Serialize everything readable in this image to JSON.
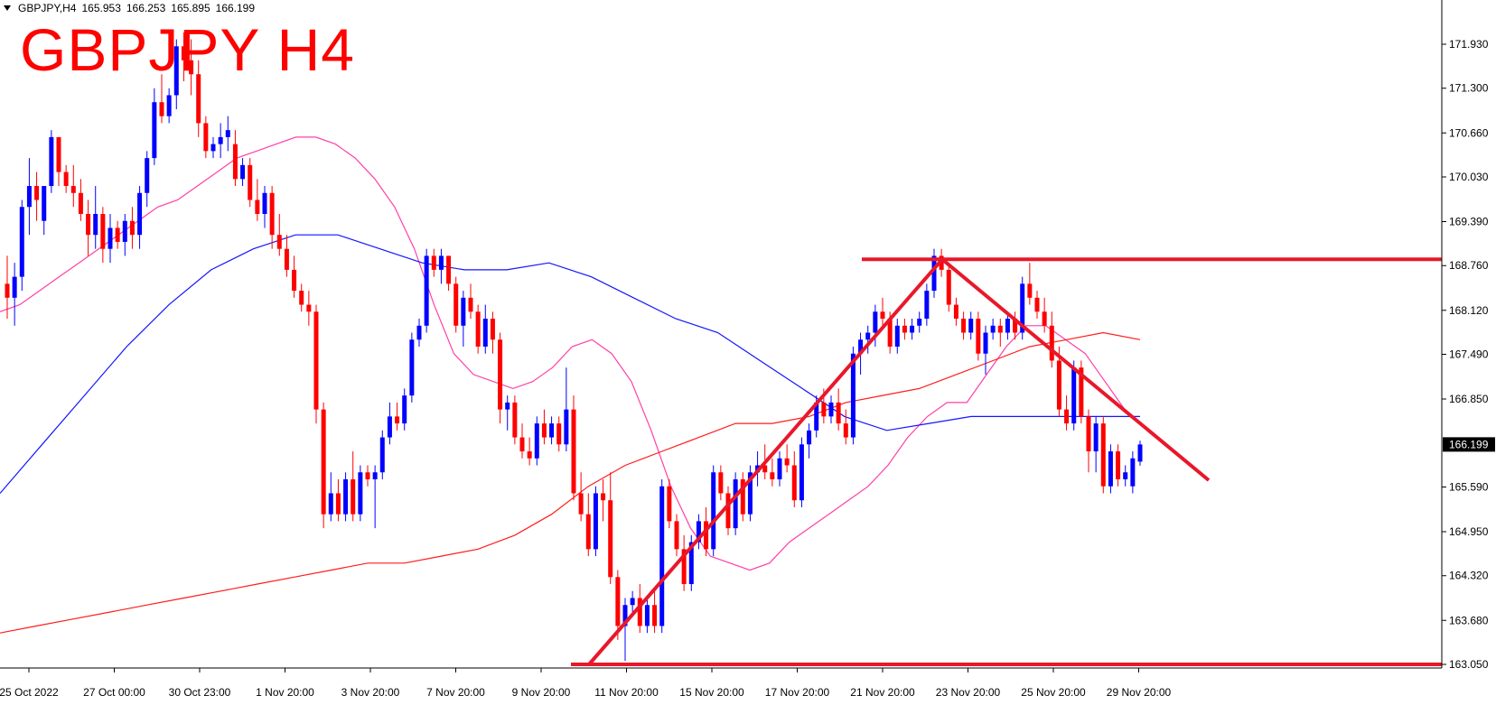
{
  "header": {
    "symbol": "GBPJPY,H4",
    "open": "165.953",
    "high": "166.253",
    "low": "165.895",
    "close": "166.199"
  },
  "title": "GBPJPY H4",
  "chart_data": {
    "type": "candlestick",
    "price_axis": {
      "ticks": [
        "171.930",
        "171.300",
        "170.660",
        "170.030",
        "169.390",
        "168.760",
        "168.120",
        "167.490",
        "166.850",
        "166.199",
        "165.590",
        "164.950",
        "164.320",
        "163.680",
        "163.050"
      ],
      "current_price": "166.199",
      "range": [
        162.9,
        172.3
      ]
    },
    "time_axis": {
      "labels": [
        "25 Oct 2022",
        "27 Oct 00:00",
        "30 Oct 23:00",
        "1 Nov 20:00",
        "3 Nov 20:00",
        "7 Nov 20:00",
        "9 Nov 20:00",
        "11 Nov 20:00",
        "15 Nov 20:00",
        "17 Nov 20:00",
        "21 Nov 20:00",
        "23 Nov 20:00",
        "25 Nov 20:00",
        "29 Nov 20:00"
      ]
    },
    "candles": [
      {
        "o": 168.5,
        "h": 168.9,
        "l": 168.0,
        "c": 168.3
      },
      {
        "o": 168.3,
        "h": 168.8,
        "l": 167.9,
        "c": 168.6
      },
      {
        "o": 168.6,
        "h": 169.7,
        "l": 168.4,
        "c": 169.6
      },
      {
        "o": 169.6,
        "h": 170.3,
        "l": 169.2,
        "c": 169.9
      },
      {
        "o": 169.9,
        "h": 170.1,
        "l": 169.4,
        "c": 169.7
      },
      {
        "o": 169.4,
        "h": 169.9,
        "l": 169.2,
        "c": 169.9
      },
      {
        "o": 169.9,
        "h": 170.7,
        "l": 169.8,
        "c": 170.6
      },
      {
        "o": 170.6,
        "h": 170.6,
        "l": 169.9,
        "c": 170.1
      },
      {
        "o": 170.1,
        "h": 170.2,
        "l": 169.8,
        "c": 169.9
      },
      {
        "o": 169.9,
        "h": 170.2,
        "l": 169.6,
        "c": 169.8
      },
      {
        "o": 169.8,
        "h": 170.0,
        "l": 169.4,
        "c": 169.5
      },
      {
        "o": 169.5,
        "h": 169.7,
        "l": 168.9,
        "c": 169.2
      },
      {
        "o": 169.2,
        "h": 169.9,
        "l": 169.0,
        "c": 169.5
      },
      {
        "o": 169.5,
        "h": 169.6,
        "l": 168.8,
        "c": 169.0
      },
      {
        "o": 169.0,
        "h": 169.5,
        "l": 168.8,
        "c": 169.3
      },
      {
        "o": 169.3,
        "h": 169.4,
        "l": 169.0,
        "c": 169.1
      },
      {
        "o": 169.1,
        "h": 169.5,
        "l": 168.9,
        "c": 169.4
      },
      {
        "o": 169.4,
        "h": 169.6,
        "l": 169.0,
        "c": 169.2
      },
      {
        "o": 169.2,
        "h": 169.9,
        "l": 169.0,
        "c": 169.8
      },
      {
        "o": 169.8,
        "h": 170.4,
        "l": 169.6,
        "c": 170.3
      },
      {
        "o": 170.3,
        "h": 171.3,
        "l": 170.2,
        "c": 171.1
      },
      {
        "o": 171.1,
        "h": 171.5,
        "l": 170.8,
        "c": 170.9
      },
      {
        "o": 170.9,
        "h": 171.3,
        "l": 170.8,
        "c": 171.2
      },
      {
        "o": 171.2,
        "h": 172.0,
        "l": 171.0,
        "c": 171.9
      },
      {
        "o": 171.9,
        "h": 172.1,
        "l": 171.4,
        "c": 171.7
      },
      {
        "o": 171.7,
        "h": 172.0,
        "l": 171.2,
        "c": 171.5
      },
      {
        "o": 171.5,
        "h": 171.7,
        "l": 170.6,
        "c": 170.8
      },
      {
        "o": 170.8,
        "h": 170.9,
        "l": 170.3,
        "c": 170.4
      },
      {
        "o": 170.4,
        "h": 170.6,
        "l": 170.3,
        "c": 170.5
      },
      {
        "o": 170.5,
        "h": 170.8,
        "l": 170.3,
        "c": 170.6
      },
      {
        "o": 170.6,
        "h": 170.9,
        "l": 170.4,
        "c": 170.7
      },
      {
        "o": 170.5,
        "h": 170.7,
        "l": 169.9,
        "c": 170.0
      },
      {
        "o": 170.0,
        "h": 170.3,
        "l": 169.9,
        "c": 170.2
      },
      {
        "o": 170.2,
        "h": 170.3,
        "l": 169.6,
        "c": 169.7
      },
      {
        "o": 169.7,
        "h": 170.0,
        "l": 169.4,
        "c": 169.5
      },
      {
        "o": 169.5,
        "h": 169.9,
        "l": 169.3,
        "c": 169.8
      },
      {
        "o": 169.8,
        "h": 169.9,
        "l": 169.0,
        "c": 169.2
      },
      {
        "o": 169.2,
        "h": 169.5,
        "l": 168.9,
        "c": 169.0
      },
      {
        "o": 169.0,
        "h": 169.2,
        "l": 168.6,
        "c": 168.7
      },
      {
        "o": 168.7,
        "h": 168.9,
        "l": 168.3,
        "c": 168.4
      },
      {
        "o": 168.4,
        "h": 168.5,
        "l": 168.1,
        "c": 168.2
      },
      {
        "o": 168.2,
        "h": 168.4,
        "l": 167.9,
        "c": 168.1
      },
      {
        "o": 168.1,
        "h": 168.2,
        "l": 166.5,
        "c": 166.7
      },
      {
        "o": 166.7,
        "h": 166.8,
        "l": 165.0,
        "c": 165.2
      },
      {
        "o": 165.2,
        "h": 165.8,
        "l": 165.1,
        "c": 165.5
      },
      {
        "o": 165.5,
        "h": 165.7,
        "l": 165.1,
        "c": 165.2
      },
      {
        "o": 165.2,
        "h": 165.8,
        "l": 165.1,
        "c": 165.7
      },
      {
        "o": 165.7,
        "h": 166.1,
        "l": 165.1,
        "c": 165.2
      },
      {
        "o": 165.2,
        "h": 165.9,
        "l": 165.1,
        "c": 165.8
      },
      {
        "o": 165.8,
        "h": 165.9,
        "l": 165.6,
        "c": 165.7
      },
      {
        "o": 165.7,
        "h": 165.9,
        "l": 165.0,
        "c": 165.8
      },
      {
        "o": 165.8,
        "h": 166.4,
        "l": 165.7,
        "c": 166.3
      },
      {
        "o": 166.3,
        "h": 166.8,
        "l": 166.2,
        "c": 166.6
      },
      {
        "o": 166.6,
        "h": 166.8,
        "l": 166.4,
        "c": 166.5
      },
      {
        "o": 166.5,
        "h": 167.0,
        "l": 166.4,
        "c": 166.9
      },
      {
        "o": 166.9,
        "h": 167.8,
        "l": 166.8,
        "c": 167.7
      },
      {
        "o": 167.7,
        "h": 168.0,
        "l": 167.6,
        "c": 167.9
      },
      {
        "o": 167.9,
        "h": 169.0,
        "l": 167.8,
        "c": 168.9
      },
      {
        "o": 168.9,
        "h": 169.0,
        "l": 168.6,
        "c": 168.7
      },
      {
        "o": 168.7,
        "h": 169.0,
        "l": 168.5,
        "c": 168.9
      },
      {
        "o": 168.9,
        "h": 168.9,
        "l": 168.4,
        "c": 168.5
      },
      {
        "o": 168.5,
        "h": 168.6,
        "l": 167.8,
        "c": 167.9
      },
      {
        "o": 167.9,
        "h": 168.4,
        "l": 167.6,
        "c": 168.3
      },
      {
        "o": 168.3,
        "h": 168.5,
        "l": 168.0,
        "c": 168.1
      },
      {
        "o": 168.1,
        "h": 168.2,
        "l": 167.5,
        "c": 167.6
      },
      {
        "o": 167.6,
        "h": 168.2,
        "l": 167.5,
        "c": 168.0
      },
      {
        "o": 168.0,
        "h": 168.1,
        "l": 167.5,
        "c": 167.7
      },
      {
        "o": 167.7,
        "h": 167.8,
        "l": 166.5,
        "c": 166.7
      },
      {
        "o": 166.7,
        "h": 166.9,
        "l": 166.4,
        "c": 166.8
      },
      {
        "o": 166.8,
        "h": 166.9,
        "l": 166.2,
        "c": 166.3
      },
      {
        "o": 166.3,
        "h": 166.5,
        "l": 166.0,
        "c": 166.1
      },
      {
        "o": 166.1,
        "h": 166.3,
        "l": 165.9,
        "c": 166.0
      },
      {
        "o": 166.0,
        "h": 166.6,
        "l": 165.9,
        "c": 166.5
      },
      {
        "o": 166.5,
        "h": 166.7,
        "l": 166.2,
        "c": 166.3
      },
      {
        "o": 166.3,
        "h": 166.6,
        "l": 166.2,
        "c": 166.5
      },
      {
        "o": 166.5,
        "h": 166.6,
        "l": 166.1,
        "c": 166.2
      },
      {
        "o": 166.2,
        "h": 167.3,
        "l": 166.1,
        "c": 166.7
      },
      {
        "o": 166.7,
        "h": 166.9,
        "l": 165.4,
        "c": 165.5
      },
      {
        "o": 165.5,
        "h": 165.8,
        "l": 165.1,
        "c": 165.2
      },
      {
        "o": 165.2,
        "h": 165.5,
        "l": 164.6,
        "c": 164.7
      },
      {
        "o": 164.7,
        "h": 165.6,
        "l": 164.6,
        "c": 165.5
      },
      {
        "o": 165.5,
        "h": 165.7,
        "l": 165.1,
        "c": 165.4
      },
      {
        "o": 165.4,
        "h": 165.8,
        "l": 164.2,
        "c": 164.3
      },
      {
        "o": 164.3,
        "h": 164.4,
        "l": 163.4,
        "c": 163.6
      },
      {
        "o": 163.6,
        "h": 164.0,
        "l": 163.1,
        "c": 163.9
      },
      {
        "o": 163.9,
        "h": 164.1,
        "l": 163.8,
        "c": 164.0
      },
      {
        "o": 164.0,
        "h": 164.2,
        "l": 163.5,
        "c": 163.6
      },
      {
        "o": 163.6,
        "h": 164.0,
        "l": 163.5,
        "c": 163.9
      },
      {
        "o": 163.9,
        "h": 164.1,
        "l": 163.5,
        "c": 163.6
      },
      {
        "o": 163.6,
        "h": 165.7,
        "l": 163.5,
        "c": 165.6
      },
      {
        "o": 165.6,
        "h": 165.7,
        "l": 165.0,
        "c": 165.1
      },
      {
        "o": 165.1,
        "h": 165.2,
        "l": 164.6,
        "c": 164.7
      },
      {
        "o": 164.7,
        "h": 164.9,
        "l": 164.1,
        "c": 164.2
      },
      {
        "o": 164.2,
        "h": 164.9,
        "l": 164.1,
        "c": 164.8
      },
      {
        "o": 164.8,
        "h": 165.2,
        "l": 164.7,
        "c": 165.1
      },
      {
        "o": 165.1,
        "h": 165.3,
        "l": 164.6,
        "c": 164.7
      },
      {
        "o": 164.7,
        "h": 165.9,
        "l": 164.6,
        "c": 165.8
      },
      {
        "o": 165.8,
        "h": 165.9,
        "l": 165.4,
        "c": 165.5
      },
      {
        "o": 165.5,
        "h": 165.6,
        "l": 164.9,
        "c": 165.0
      },
      {
        "o": 165.0,
        "h": 165.8,
        "l": 164.9,
        "c": 165.7
      },
      {
        "o": 165.7,
        "h": 165.8,
        "l": 165.1,
        "c": 165.2
      },
      {
        "o": 165.2,
        "h": 165.9,
        "l": 165.1,
        "c": 165.8
      },
      {
        "o": 165.8,
        "h": 166.1,
        "l": 165.6,
        "c": 165.9
      },
      {
        "o": 165.9,
        "h": 166.2,
        "l": 165.7,
        "c": 165.8
      },
      {
        "o": 165.8,
        "h": 166.0,
        "l": 165.6,
        "c": 165.7
      },
      {
        "o": 165.7,
        "h": 166.1,
        "l": 165.6,
        "c": 166.0
      },
      {
        "o": 166.0,
        "h": 166.2,
        "l": 165.8,
        "c": 165.9
      },
      {
        "o": 165.9,
        "h": 166.1,
        "l": 165.3,
        "c": 165.4
      },
      {
        "o": 165.4,
        "h": 166.3,
        "l": 165.3,
        "c": 166.2
      },
      {
        "o": 166.2,
        "h": 166.5,
        "l": 166.0,
        "c": 166.4
      },
      {
        "o": 166.4,
        "h": 166.9,
        "l": 166.3,
        "c": 166.8
      },
      {
        "o": 166.8,
        "h": 167.0,
        "l": 166.5,
        "c": 166.6
      },
      {
        "o": 166.6,
        "h": 166.9,
        "l": 166.5,
        "c": 166.8
      },
      {
        "o": 166.8,
        "h": 167.0,
        "l": 166.4,
        "c": 166.5
      },
      {
        "o": 166.5,
        "h": 166.7,
        "l": 166.2,
        "c": 166.3
      },
      {
        "o": 166.3,
        "h": 167.6,
        "l": 166.2,
        "c": 167.5
      },
      {
        "o": 167.5,
        "h": 167.8,
        "l": 167.2,
        "c": 167.7
      },
      {
        "o": 167.7,
        "h": 167.9,
        "l": 167.5,
        "c": 167.8
      },
      {
        "o": 167.8,
        "h": 168.2,
        "l": 167.6,
        "c": 168.1
      },
      {
        "o": 168.1,
        "h": 168.3,
        "l": 167.9,
        "c": 168.0
      },
      {
        "o": 168.0,
        "h": 168.1,
        "l": 167.5,
        "c": 167.6
      },
      {
        "o": 167.6,
        "h": 168.0,
        "l": 167.5,
        "c": 167.9
      },
      {
        "o": 167.9,
        "h": 168.0,
        "l": 167.7,
        "c": 167.8
      },
      {
        "o": 167.8,
        "h": 168.0,
        "l": 167.7,
        "c": 167.9
      },
      {
        "o": 167.9,
        "h": 168.1,
        "l": 167.8,
        "c": 168.0
      },
      {
        "o": 168.0,
        "h": 168.5,
        "l": 167.9,
        "c": 168.4
      },
      {
        "o": 168.4,
        "h": 169.0,
        "l": 168.3,
        "c": 168.9
      },
      {
        "o": 168.9,
        "h": 169.0,
        "l": 168.6,
        "c": 168.7
      },
      {
        "o": 168.7,
        "h": 168.8,
        "l": 168.1,
        "c": 168.2
      },
      {
        "o": 168.2,
        "h": 168.3,
        "l": 167.9,
        "c": 168.0
      },
      {
        "o": 168.0,
        "h": 168.1,
        "l": 167.7,
        "c": 167.8
      },
      {
        "o": 167.8,
        "h": 168.1,
        "l": 167.7,
        "c": 168.0
      },
      {
        "o": 168.0,
        "h": 168.1,
        "l": 167.4,
        "c": 167.5
      },
      {
        "o": 167.5,
        "h": 167.9,
        "l": 167.2,
        "c": 167.8
      },
      {
        "o": 167.8,
        "h": 168.0,
        "l": 167.7,
        "c": 167.9
      },
      {
        "o": 167.9,
        "h": 168.0,
        "l": 167.6,
        "c": 167.8
      },
      {
        "o": 167.8,
        "h": 168.1,
        "l": 167.7,
        "c": 168.0
      },
      {
        "o": 168.0,
        "h": 168.1,
        "l": 167.7,
        "c": 167.8
      },
      {
        "o": 167.8,
        "h": 168.6,
        "l": 167.7,
        "c": 168.5
      },
      {
        "o": 168.5,
        "h": 168.8,
        "l": 168.2,
        "c": 168.3
      },
      {
        "o": 168.3,
        "h": 168.4,
        "l": 168.0,
        "c": 168.1
      },
      {
        "o": 168.1,
        "h": 168.3,
        "l": 167.8,
        "c": 167.9
      },
      {
        "o": 167.9,
        "h": 168.1,
        "l": 167.3,
        "c": 167.4
      },
      {
        "o": 167.4,
        "h": 167.6,
        "l": 166.6,
        "c": 166.7
      },
      {
        "o": 166.7,
        "h": 166.9,
        "l": 166.4,
        "c": 166.5
      },
      {
        "o": 166.5,
        "h": 167.4,
        "l": 166.4,
        "c": 167.3
      },
      {
        "o": 167.3,
        "h": 167.4,
        "l": 166.5,
        "c": 166.6
      },
      {
        "o": 166.6,
        "h": 166.7,
        "l": 165.8,
        "c": 166.1
      },
      {
        "o": 166.1,
        "h": 166.6,
        "l": 165.8,
        "c": 166.5
      },
      {
        "o": 166.5,
        "h": 166.6,
        "l": 165.5,
        "c": 165.6
      },
      {
        "o": 165.6,
        "h": 166.2,
        "l": 165.5,
        "c": 166.1
      },
      {
        "o": 166.1,
        "h": 166.2,
        "l": 165.6,
        "c": 165.7
      },
      {
        "o": 165.7,
        "h": 165.9,
        "l": 165.6,
        "c": 165.8
      },
      {
        "o": 165.6,
        "h": 166.1,
        "l": 165.5,
        "c": 166.0
      },
      {
        "o": 165.953,
        "h": 166.253,
        "l": 165.895,
        "c": 166.199
      }
    ],
    "moving_averages": [
      {
        "color": "#ff3fa8",
        "values": [
          168.1,
          168.2,
          168.4,
          168.6,
          168.8,
          169.0,
          169.2,
          169.4,
          169.6,
          169.7,
          169.9,
          170.1,
          170.3,
          170.4,
          170.5,
          170.6,
          170.6,
          170.5,
          170.3,
          170.0,
          169.6,
          169.0,
          168.2,
          167.5,
          167.2,
          167.1,
          167.0,
          167.1,
          167.3,
          167.6,
          167.7,
          167.5,
          167.1,
          166.4,
          165.6,
          165.0,
          164.6,
          164.5,
          164.4,
          164.5,
          164.8,
          165.0,
          165.2,
          165.4,
          165.6,
          165.9,
          166.3,
          166.6,
          166.8,
          166.8,
          167.2,
          167.6,
          167.9,
          167.9,
          167.7,
          167.5,
          167.1,
          166.7
        ]
      },
      {
        "color": "#1515ff",
        "values": [
          165.5,
          166.2,
          166.9,
          167.6,
          168.2,
          168.7,
          169.0,
          169.2,
          169.2,
          169.0,
          168.8,
          168.7,
          168.7,
          168.8,
          168.6,
          168.3,
          168.0,
          167.8,
          167.4,
          167.0,
          166.6,
          166.4,
          166.5,
          166.6,
          166.6,
          166.6,
          166.6,
          166.6
        ]
      },
      {
        "color": "#ff1c1c",
        "values": [
          163.5,
          163.6,
          163.7,
          163.8,
          163.9,
          164.0,
          164.1,
          164.2,
          164.3,
          164.4,
          164.5,
          164.5,
          164.6,
          164.7,
          164.9,
          165.2,
          165.6,
          165.9,
          166.1,
          166.3,
          166.5,
          166.5,
          166.6,
          166.8,
          166.9,
          167.0,
          167.2,
          167.4,
          167.6,
          167.7,
          167.8,
          167.7
        ]
      }
    ],
    "support_level": 163.05,
    "resistance_level": 168.85,
    "colors": {
      "bull": "#0000ff",
      "bear": "#ff0000",
      "annotation": "#e8182a",
      "price_tag_bg": "#000000"
    }
  }
}
